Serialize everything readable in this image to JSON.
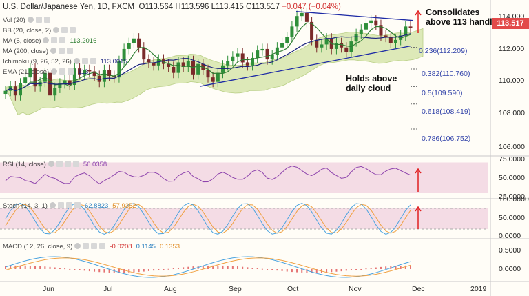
{
  "header": {
    "symbol": "U.S. Dollar/Japanese Yen, 1D, FXCM",
    "open": "O113.564",
    "high": "H113.596",
    "low": "L113.415",
    "close": "C113.517",
    "change": "−0.047 (−0.04%)"
  },
  "legends": {
    "vol": "Vol (20)",
    "bb": "BB (20, close, 2)",
    "ma5": "MA (5, close)",
    "ma5_val": "113.2016",
    "ma200": "MA (200, close)",
    "ichimoku": "Ichimoku (9, 26, 52, 26)",
    "ichimoku_val": "113.0015",
    "ema": "EMA (21, close)",
    "ema_val": "113.",
    "rsi": "RSI (14, close)",
    "rsi_val": "56.0358",
    "stoch": "Stoch (14, 3, 1)",
    "stoch_k": "62.8823",
    "stoch_d": "57.9352",
    "macd": "MACD (12, 26, close, 9)",
    "macd_val1": "-0.0208",
    "macd_val2": "0.1145",
    "macd_val3": "0.1353"
  },
  "annotations": {
    "consolidates_1": "Consolidates",
    "consolidates_2": "above 113 handle",
    "holds_1": "Holds above",
    "holds_2": "daily cloud"
  },
  "fib_levels": [
    "0.236(112.209)",
    "0.382(110.760)",
    "0.5(109.590)",
    "0.618(108.419)",
    "0.786(106.752)"
  ],
  "current_price": "113.517",
  "price_axis": [
    "114.000",
    "112.000",
    "110.000",
    "108.000",
    "106.000"
  ],
  "rsi_axis": [
    "75.0000",
    "50.0000",
    "25.0000"
  ],
  "stoch_axis": [
    "100.0000",
    "50.0000",
    "0.0000"
  ],
  "macd_axis": [
    "0.5000",
    "0.0000"
  ],
  "time_axis": [
    "Jun",
    "Jul",
    "Aug",
    "Sep",
    "Oct",
    "Nov",
    "Dec",
    "2019"
  ],
  "colors": {
    "candle_up": "#2f8f3a",
    "candle_down": "#7a2a2a",
    "cloud": "#dde9b8",
    "trend": "#1d2aa5",
    "ma5": "#2e7d32",
    "ema": "#1a237e",
    "rsi": "#8e44ad",
    "stoch_k": "#4aa3df",
    "stoch_d": "#f0a040",
    "macd": "#4aa3df",
    "signal": "#f0a040",
    "hist": "#e57373",
    "panel_fill": "#ecc6d8",
    "arrow": "#e02020",
    "price_tag": "#e24a4a"
  },
  "chart_data": {
    "type": "candlestick",
    "title": "U.S. Dollar/Japanese Yen, 1D, FXCM",
    "x_range": [
      "2018-05-15",
      "2018-11-27"
    ],
    "ylim": [
      105.0,
      115.0
    ],
    "close_series": [
      109.3,
      109.6,
      109.0,
      109.8,
      110.2,
      110.8,
      109.6,
      109.9,
      110.5,
      109.0,
      109.5,
      109.8,
      110.0,
      109.7,
      110.8,
      110.4,
      110.7,
      110.6,
      110.3,
      109.9,
      110.7,
      110.3,
      110.2,
      111.3,
      112.1,
      112.5,
      112.8,
      112.2,
      111.4,
      111.2,
      111.0,
      111.4,
      111.1,
      110.9,
      110.5,
      111.2,
      110.9,
      111.3,
      110.4,
      111.1,
      110.7,
      110.2,
      109.9,
      110.5,
      111.0,
      111.3,
      111.6,
      111.8,
      111.2,
      111.0,
      111.5,
      112.0,
      112.1,
      111.4,
      111.7,
      112.2,
      112.5,
      112.9,
      113.6,
      114.3,
      114.5,
      113.9,
      112.7,
      112.2,
      112.4,
      112.8,
      112.1,
      112.5,
      112.2,
      111.9,
      112.6,
      113.1,
      113.4,
      113.8,
      114.0,
      113.7,
      113.0,
      112.9,
      112.5,
      112.7,
      113.0,
      113.6,
      113.517
    ],
    "ma5_last": 113.2016,
    "trendlines": [
      {
        "name": "resistance",
        "from": [
          113.95,
          "2018-10-04"
        ],
        "to": [
          114.05,
          "2018-11-27"
        ]
      },
      {
        "name": "support",
        "from": [
          109.6,
          "2018-08-20"
        ],
        "to": [
          112.3,
          "2018-11-27"
        ]
      }
    ],
    "fibonacci": [
      {
        "ratio": 0.236,
        "level": 112.209
      },
      {
        "ratio": 0.382,
        "level": 110.76
      },
      {
        "ratio": 0.5,
        "level": 109.59
      },
      {
        "ratio": 0.618,
        "level": 108.419
      },
      {
        "ratio": 0.786,
        "level": 106.752
      }
    ],
    "rsi": {
      "ylim": [
        25,
        75
      ],
      "last": 56.0358
    },
    "stoch": {
      "ylim": [
        0,
        100
      ],
      "k_last": 62.8823,
      "d_last": 57.9352
    },
    "macd": {
      "last": [
        -0.0208,
        0.1145,
        0.1353
      ]
    }
  }
}
